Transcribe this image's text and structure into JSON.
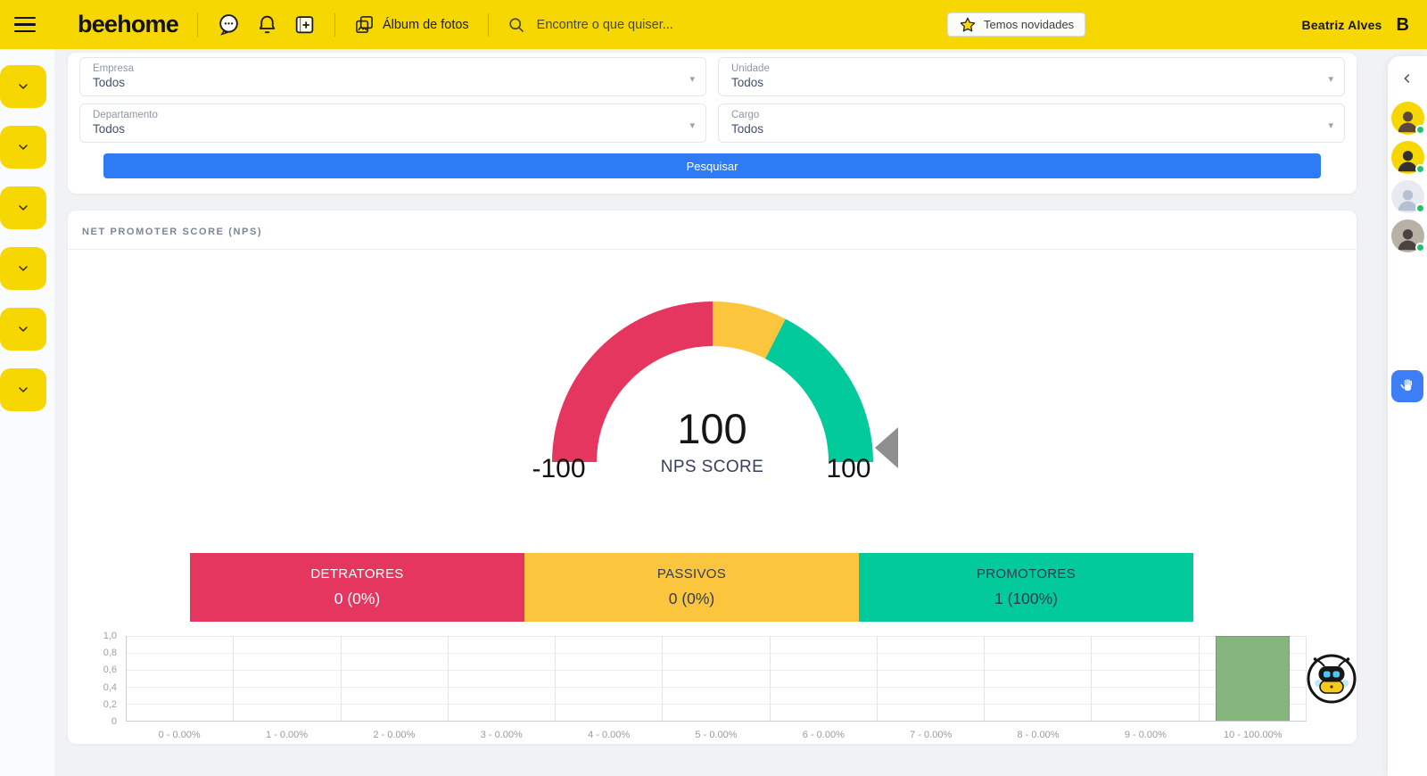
{
  "topbar": {
    "brand": "beehome",
    "album_label": "Álbum de fotos",
    "search_placeholder": "Encontre o que quiser...",
    "news_button_label": "Temos novidades",
    "user_name": "Beatriz  Alves"
  },
  "sidebar": {
    "items": [
      {
        "icon": "chevron-down-icon"
      },
      {
        "icon": "chevron-down-icon"
      },
      {
        "icon": "chevron-down-icon"
      },
      {
        "icon": "chevron-down-icon"
      },
      {
        "icon": "chevron-down-icon"
      },
      {
        "icon": "chevron-down-icon"
      }
    ]
  },
  "filters": {
    "fields": [
      {
        "label": "Empresa",
        "value": "Todos"
      },
      {
        "label": "Unidade",
        "value": "Todos"
      },
      {
        "label": "Departamento",
        "value": "Todos"
      },
      {
        "label": "Cargo",
        "value": "Todos"
      }
    ],
    "submit_label": "Pesquisar"
  },
  "nps": {
    "section_title": "NET PROMOTER SCORE (NPS)",
    "gauge": {
      "score": "100",
      "score_label": "NPS SCORE",
      "min_label": "-100",
      "max_label": "100",
      "zones": [
        {
          "name": "detractors",
          "from": -100,
          "to": 0,
          "color": "#E5365F"
        },
        {
          "name": "passives",
          "from": 0,
          "to": 30,
          "color": "#FBC63E"
        },
        {
          "name": "promoters",
          "from": 30,
          "to": 100,
          "color": "#03CA9B"
        }
      ],
      "pointer_value": 100,
      "pointer_color": "#8f8f8f"
    },
    "segments": [
      {
        "label": "DETRATORES",
        "value": "0 (0%)",
        "color": "#E5365F"
      },
      {
        "label": "PASSIVOS",
        "value": "0 (0%)",
        "color": "#FBC63E"
      },
      {
        "label": "PROMOTORES",
        "value": "1 (100%)",
        "color": "#03CA9B"
      }
    ]
  },
  "chart_data": {
    "type": "bar",
    "title": "",
    "categories": [
      "0 - 0.00%",
      "1 - 0.00%",
      "2 - 0.00%",
      "3 - 0.00%",
      "4 - 0.00%",
      "5 - 0.00%",
      "6 - 0.00%",
      "7 - 0.00%",
      "8 - 0.00%",
      "9 - 0.00%",
      "10 - 100.00%"
    ],
    "values": [
      0,
      0,
      0,
      0,
      0,
      0,
      0,
      0,
      0,
      0,
      1
    ],
    "y_ticks": [
      "1,0",
      "0,8",
      "0,6",
      "0,4",
      "0,2",
      "0"
    ],
    "ylim": [
      0,
      1
    ],
    "grid": true,
    "legend": false,
    "bar_color": "#86B67E",
    "xlabel": "",
    "ylabel": ""
  },
  "right_panel": {
    "collapse_icon": "chevron-left-icon",
    "avatars": [
      {
        "type": "photo",
        "bg": "#F7D702",
        "status": "online"
      },
      {
        "type": "photo",
        "bg": "#F7D702",
        "status": "online"
      },
      {
        "type": "placeholder",
        "bg": "#e7ebf1",
        "status": "online"
      },
      {
        "type": "photo",
        "bg": "#b8b1a6",
        "status": "online"
      }
    ],
    "status_color": "#21c26e",
    "handtalk_color": "#3D7EF7"
  },
  "colors": {
    "topbar_yellow": "#F7D702",
    "primary_blue": "#2E7BF6",
    "detractors_red": "#E5365F",
    "passives_yellow": "#FBC63E",
    "promoters_green": "#03CA9B",
    "chart_bar_green": "#86B67E",
    "background": "#f1f2f5"
  }
}
